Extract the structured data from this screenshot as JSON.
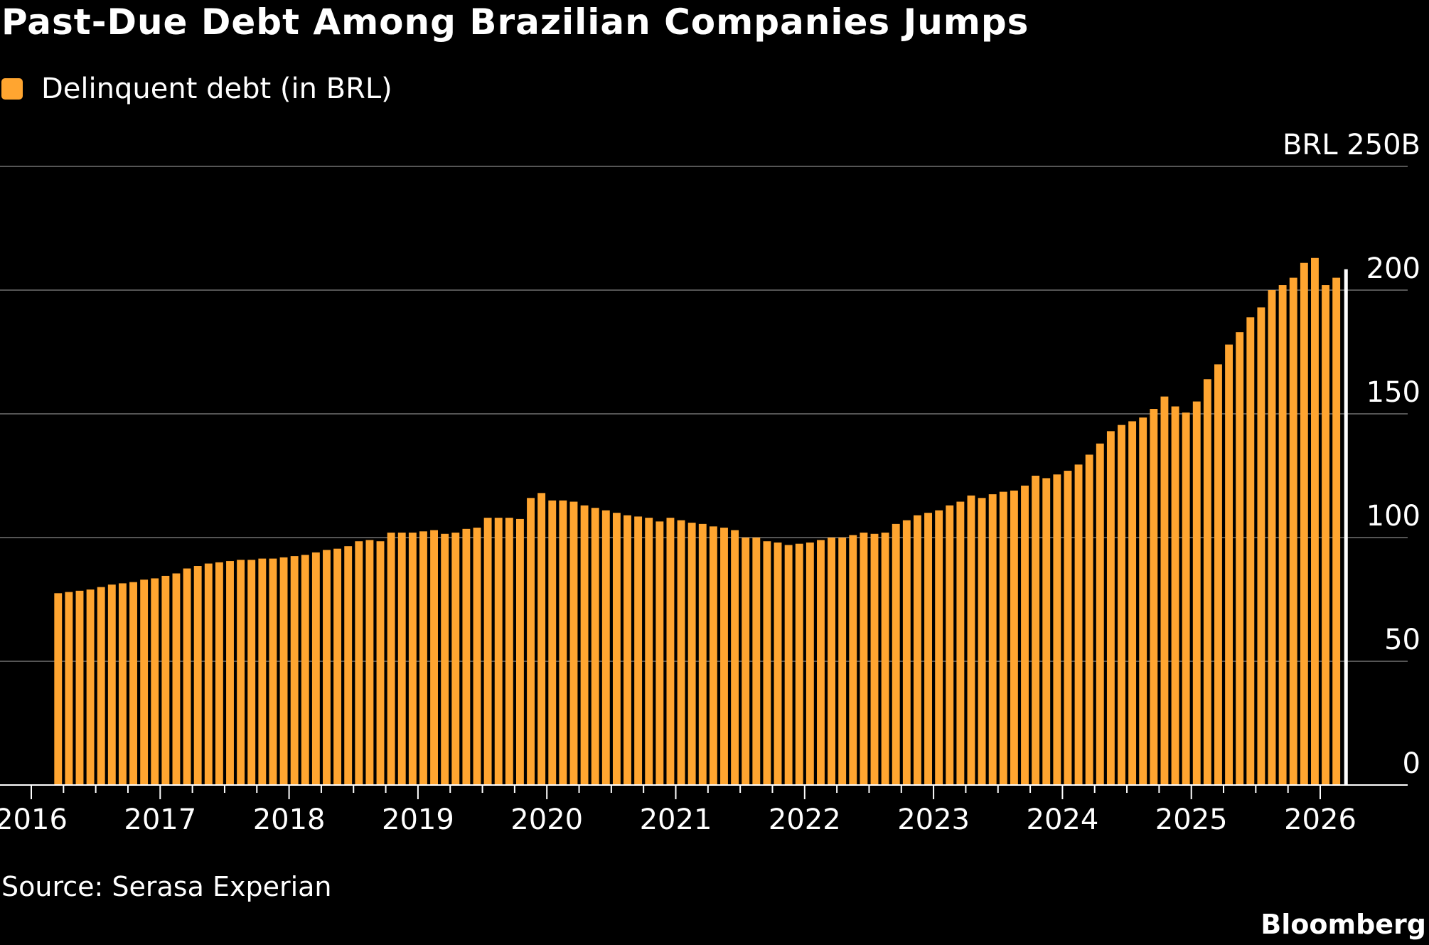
{
  "chart_data": {
    "type": "bar",
    "title": "Past-Due Debt Among Brazilian Companies Jumps",
    "legend": {
      "position": "top-left",
      "entries": [
        {
          "label": "Delinquent debt (in BRL)",
          "color": "#FFA530"
        }
      ]
    },
    "series": [
      {
        "name": "Delinquent debt (in BRL)",
        "color": "#FFA530",
        "start": "2016-03",
        "frequency": "monthly",
        "values": [
          77.5,
          78,
          78.5,
          79,
          80,
          81,
          81.5,
          82,
          83,
          83.5,
          84.5,
          85.5,
          87.5,
          88.5,
          89.5,
          90,
          90.5,
          91,
          91,
          91.5,
          91.5,
          92,
          92.5,
          93,
          94,
          95,
          95.5,
          96.5,
          98.5,
          99,
          98.5,
          102,
          102,
          102,
          102.5,
          103,
          101.5,
          102,
          103.5,
          104,
          108,
          108,
          108,
          107.5,
          116,
          118,
          115,
          115,
          114.5,
          113,
          112,
          111,
          110,
          109,
          108.5,
          108,
          106.5,
          108,
          107,
          106,
          105.5,
          104.5,
          104,
          103,
          100,
          100,
          98.5,
          98,
          97,
          97.5,
          98,
          99,
          100,
          100,
          101,
          102,
          101.5,
          102,
          105.5,
          107,
          109,
          110,
          111,
          113,
          114.5,
          117,
          116,
          117.5,
          118.5,
          119,
          121,
          125,
          124,
          125.5,
          127,
          129.5,
          133.5,
          138,
          143,
          145.5,
          147,
          148.5,
          152,
          157,
          153,
          150.5,
          155,
          164,
          170,
          178,
          183,
          189,
          193,
          200,
          202,
          205,
          211,
          213,
          202,
          205
        ]
      }
    ],
    "x_axis": {
      "ticks": [
        "2016",
        "2017",
        "2018",
        "2019",
        "2020",
        "2021",
        "2022",
        "2023",
        "2024",
        "2025",
        "2026"
      ]
    },
    "y_axis": {
      "ticks": [
        "0",
        "50",
        "100",
        "150",
        "200",
        "BRL 250B"
      ],
      "ylim": [
        0,
        250
      ],
      "position": "right",
      "grid": true
    },
    "latest_marker": true
  },
  "source": "Source: Serasa Experian",
  "brand": "Bloomberg",
  "colors": {
    "background": "#000000",
    "bar": "#FFA530",
    "grid": "#555555",
    "marker": "#FFFFFF"
  }
}
